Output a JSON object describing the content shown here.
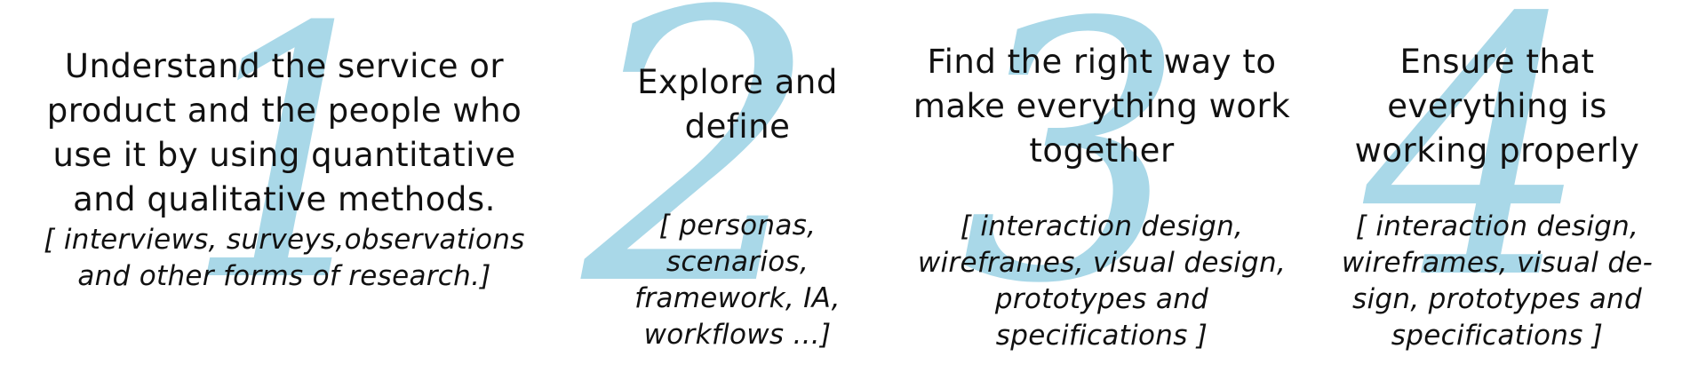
{
  "accent_color": "#a9d8e8",
  "steps": [
    {
      "numeral": "1",
      "title": "Understand the service or product and the people who  use it by using quantitative and qualitative methods.",
      "methods": "[ interviews, surveys,observations and other forms of research.]"
    },
    {
      "numeral": "2",
      "title": "Explore and define",
      "methods": "[ personas, scenarios, framework, IA, workflows ...]"
    },
    {
      "numeral": "3",
      "title": "Find the right way to make everything work together",
      "methods": "[ interaction design, wireframes, visual design, prototypes and specifications ]"
    },
    {
      "numeral": "4",
      "title": "Ensure that everything is working properly",
      "methods": "[ interaction design, wireframes, visual de-sign, prototypes and specifications ]"
    }
  ]
}
